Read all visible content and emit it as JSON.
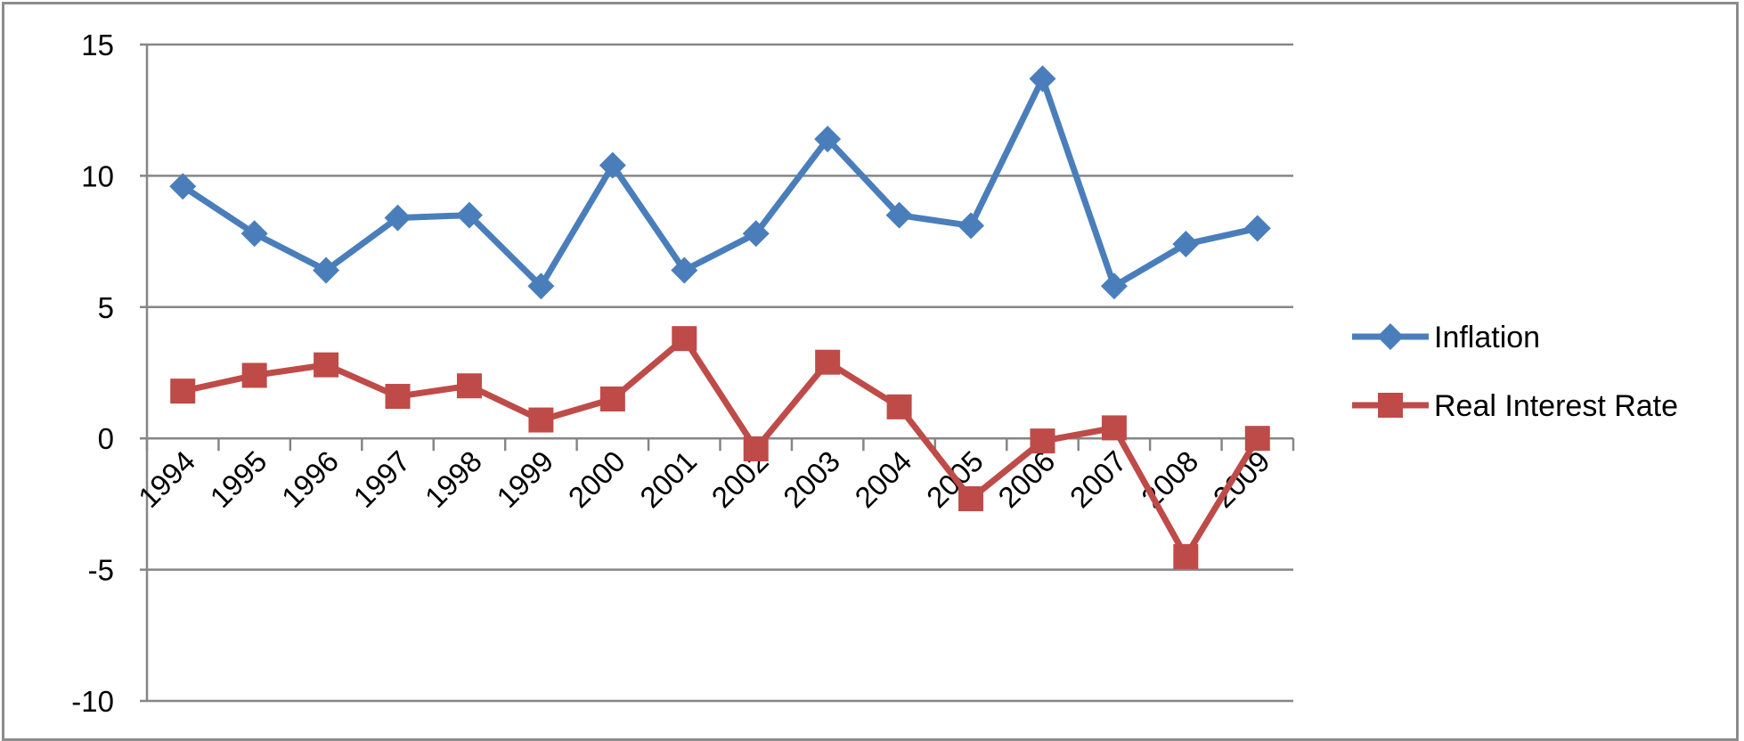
{
  "chart_data": {
    "type": "line",
    "categories": [
      "1994",
      "1995",
      "1996",
      "1997",
      "1998",
      "1999",
      "2000",
      "2001",
      "2002",
      "2003",
      "2004",
      "2005",
      "2006",
      "2007",
      "2008",
      "2009"
    ],
    "series": [
      {
        "name": "Inflation",
        "color": "#4a7ebb",
        "marker": "diamond",
        "values": [
          9.6,
          7.8,
          6.4,
          8.4,
          8.5,
          5.8,
          10.4,
          6.4,
          7.8,
          11.4,
          8.5,
          8.1,
          13.7,
          5.8,
          7.4,
          8.0
        ]
      },
      {
        "name": "Real Interest Rate",
        "color": "#be4b48",
        "marker": "square",
        "values": [
          1.8,
          2.4,
          2.8,
          1.6,
          2.0,
          0.7,
          1.5,
          3.8,
          -0.4,
          2.9,
          1.2,
          -2.3,
          -0.1,
          0.4,
          -4.5,
          0.0
        ]
      }
    ],
    "yticks": [
      "15",
      "10",
      "5",
      "0",
      "-5",
      "-10"
    ],
    "ylim": [
      -10,
      15
    ],
    "title": "",
    "xlabel": "",
    "ylabel": "",
    "grid": true,
    "legend_position": "right"
  }
}
